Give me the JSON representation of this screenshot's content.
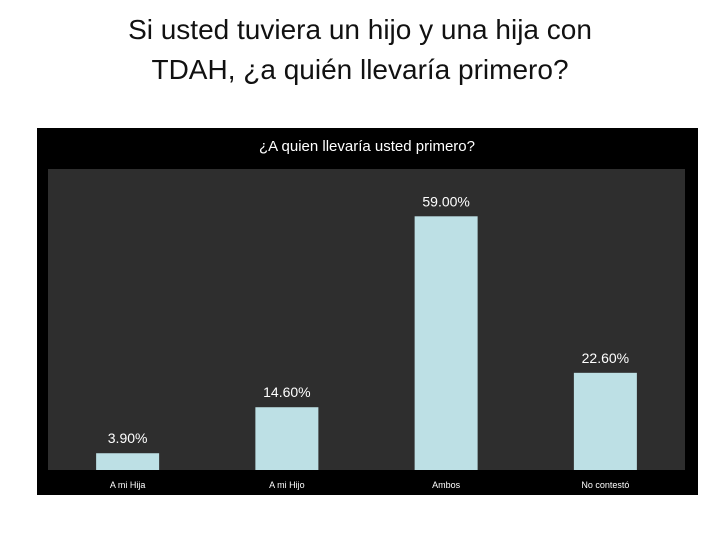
{
  "slide": {
    "title_line1": "Si usted tuviera un hijo y una hija con",
    "title_line2": "TDAH, ¿a quién llevaría primero?"
  },
  "colors": {
    "panel_background": "#000000",
    "plot_background": "#2e2e2e",
    "bar_fill": "#bde0e5",
    "text": "#ffffff"
  },
  "chart_data": {
    "type": "bar",
    "title": "¿A quien llevaría usted primero?",
    "categories": [
      "A mi Hija",
      "A mi Hijo",
      "Ambos",
      "No contestó"
    ],
    "values": [
      3.9,
      14.6,
      59.0,
      22.6
    ],
    "data_labels": [
      "3.90%",
      "14.60%",
      "59.00%",
      "22.60%"
    ],
    "unit": "%",
    "ylim": [
      0,
      70
    ],
    "grid": false,
    "legend": "none"
  }
}
